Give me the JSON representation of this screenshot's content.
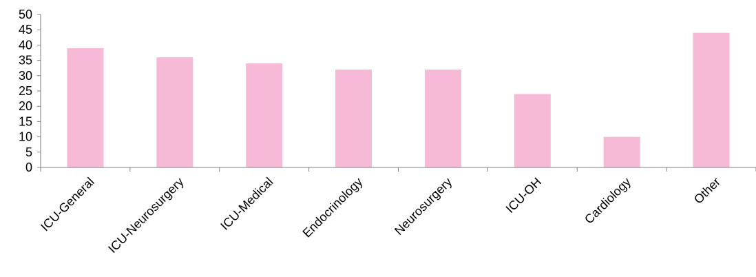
{
  "chart_data": {
    "type": "bar",
    "categories": [
      "ICU-General",
      "ICU-Neurosurgery",
      "ICU-Medical",
      "Endocrinology",
      "Neurosurgery",
      "ICU-OH",
      "Cardiology",
      "Other"
    ],
    "values": [
      39,
      36,
      34,
      32,
      32,
      24,
      10,
      44
    ],
    "title": "",
    "xlabel": "",
    "ylabel": "",
    "ylim": [
      0,
      50
    ],
    "yticks": [
      0,
      5,
      10,
      15,
      20,
      25,
      30,
      35,
      40,
      45,
      50
    ],
    "grid": false,
    "legend": "none",
    "bar_color": "#f7bad6"
  }
}
